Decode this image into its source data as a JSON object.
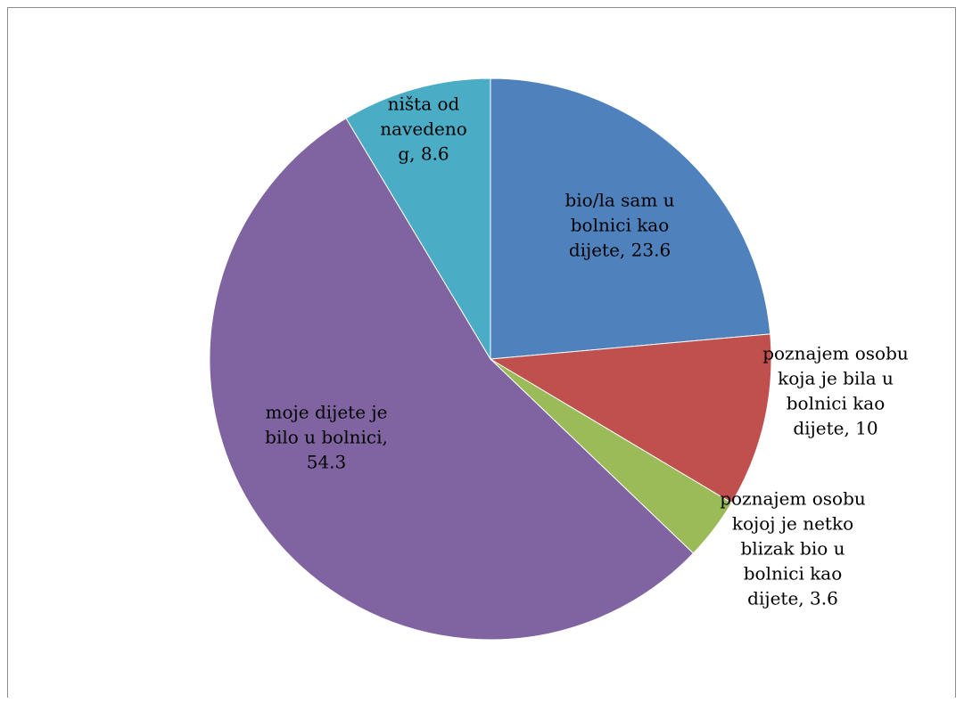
{
  "chart_data": {
    "type": "pie",
    "slices": [
      {
        "label_lines": [
          "bio/la sam u",
          "bolnici kao",
          "dijete, 23.6"
        ],
        "value": 23.6,
        "color": "#4F81BD"
      },
      {
        "label_lines": [
          "poznajem osobu",
          "koja je bila u",
          "bolnici kao",
          "dijete, 10"
        ],
        "value": 10,
        "color": "#C0504D"
      },
      {
        "label_lines": [
          "poznajem osobu",
          "kojoj je netko",
          "blizak bio u",
          "bolnici kao",
          "dijete, 3.6"
        ],
        "value": 3.6,
        "color": "#9BBB59"
      },
      {
        "label_lines": [
          "moje dijete je",
          "bilo u bolnici,",
          "54.3"
        ],
        "value": 54.3,
        "color": "#8064A2"
      },
      {
        "label_lines": [
          "ništa od",
          "navedeno",
          "g, 8.6"
        ],
        "value": 8.6,
        "color": "#4BACC6"
      }
    ],
    "start": "12 o'clock",
    "direction": "clockwise"
  }
}
